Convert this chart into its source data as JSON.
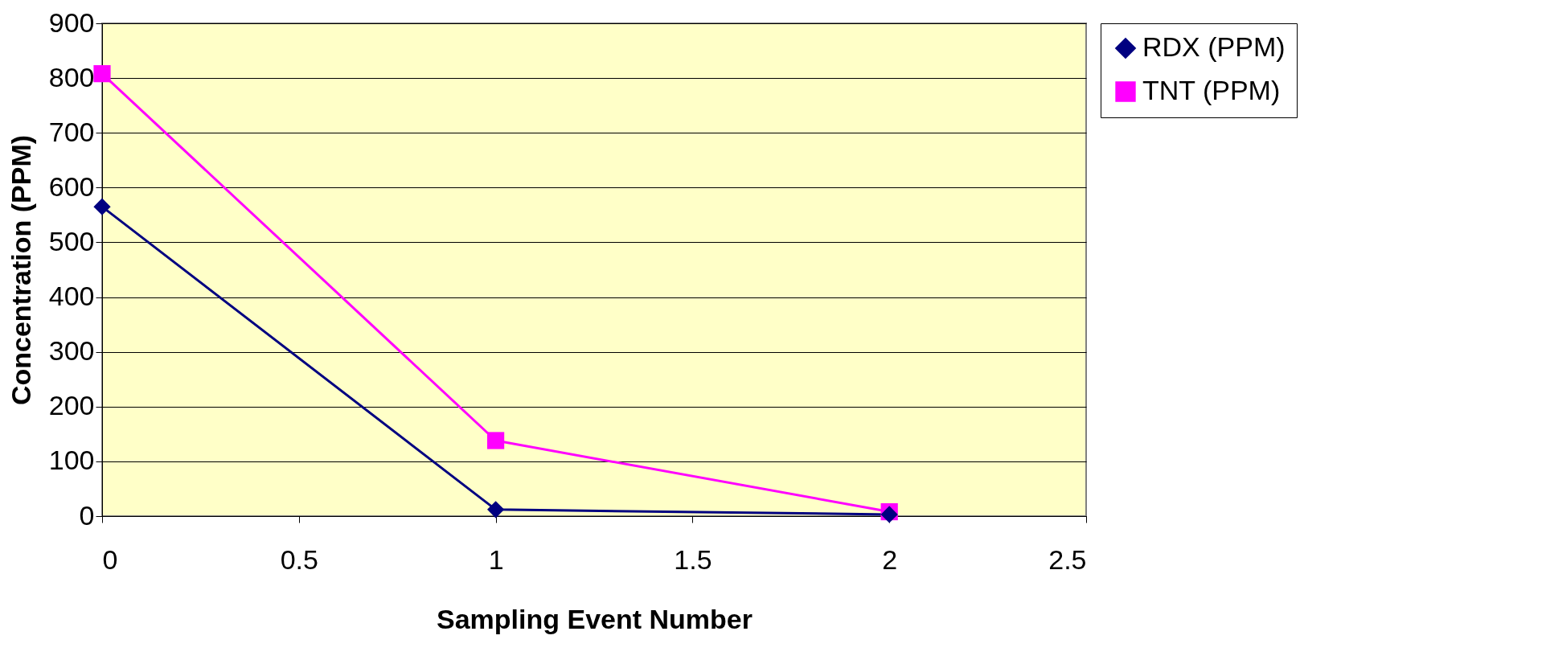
{
  "chart_data": {
    "type": "line",
    "xlabel": "Sampling Event Number",
    "ylabel": "Concentration (PPM)",
    "x": [
      0,
      1,
      2
    ],
    "series": [
      {
        "name": "RDX (PPM)",
        "color": "#000080",
        "marker": "diamond",
        "values": [
          565,
          12,
          3
        ]
      },
      {
        "name": "TNT (PPM)",
        "color": "#ff00ff",
        "marker": "square",
        "values": [
          808,
          138,
          8
        ]
      }
    ],
    "xlim": [
      0,
      2.5
    ],
    "xticks": [
      0,
      0.5,
      1,
      1.5,
      2,
      2.5
    ],
    "ylim": [
      0,
      900
    ],
    "yticks": [
      0,
      100,
      200,
      300,
      400,
      500,
      600,
      700,
      800,
      900
    ],
    "grid": "y",
    "legend": "right",
    "line_style": "solid"
  }
}
